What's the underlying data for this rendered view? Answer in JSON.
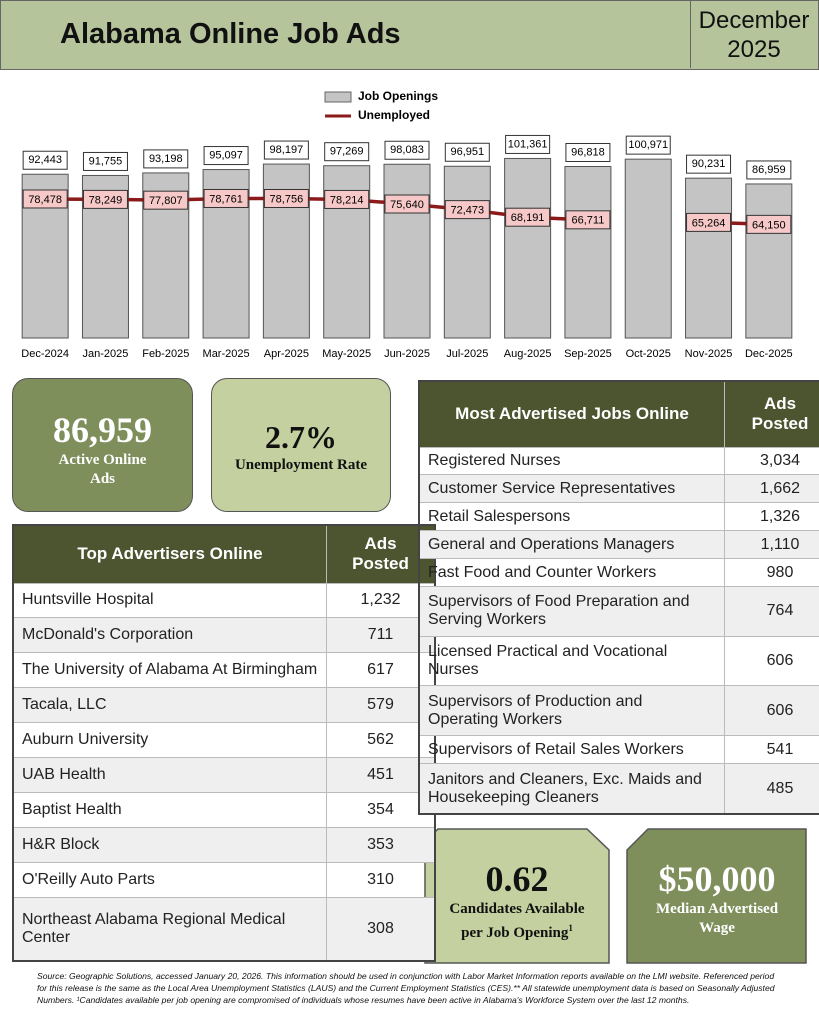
{
  "header": {
    "title": "Alabama Online Job Ads",
    "date_line1": "December",
    "date_line2": "2025"
  },
  "chart_data": {
    "type": "bar",
    "categories": [
      "Dec-2024",
      "Jan-2025",
      "Feb-2025",
      "Mar-2025",
      "Apr-2025",
      "May-2025",
      "Jun-2025",
      "Jul-2025",
      "Aug-2025",
      "Sep-2025",
      "Oct-2025",
      "Nov-2025",
      "Dec-2025"
    ],
    "series": [
      {
        "name": "Job Openings",
        "type": "bar",
        "color": "#c4c4c4",
        "values": [
          92443,
          91755,
          93198,
          95097,
          98197,
          97269,
          98083,
          96951,
          101361,
          96818,
          100971,
          90231,
          86959
        ],
        "value_labels": [
          "92,443",
          "91,755",
          "93,198",
          "95,097",
          "98,197",
          "97,269",
          "98,083",
          "96,951",
          "101,361",
          "96,818",
          "100,971",
          "90,231",
          "86,959"
        ]
      },
      {
        "name": "Unemployed",
        "type": "line",
        "color": "#8b1a1a",
        "values": [
          78478,
          78249,
          77807,
          78761,
          78756,
          78214,
          75640,
          72473,
          68191,
          66711,
          null,
          65264,
          64150
        ],
        "value_labels": [
          "78,478",
          "78,249",
          "77,807",
          "78,761",
          "78,756",
          "78,214",
          "75,640",
          "72,473",
          "68,191",
          "66,711",
          null,
          "65,264",
          "64,150"
        ]
      }
    ],
    "ylim": [
      0,
      140000
    ]
  },
  "stats": [
    {
      "value": "86,959",
      "label": "Active Online Ads"
    },
    {
      "value": "2.7%",
      "label": "Unemployment Rate"
    },
    {
      "value": "0.62",
      "label": "Candidates Available per Job Opening",
      "sup": "1"
    },
    {
      "value": "$50,000",
      "label": "Median Advertised Wage"
    }
  ],
  "top_advertisers": {
    "columns": [
      "Top Advertisers Online",
      "Ads Posted"
    ],
    "rows": [
      [
        "Huntsville Hospital",
        "1,232"
      ],
      [
        "McDonald's Corporation",
        "711"
      ],
      [
        "The University of Alabama At Birmingham",
        "617"
      ],
      [
        "Tacala, LLC",
        "579"
      ],
      [
        "Auburn University",
        "562"
      ],
      [
        "UAB Health",
        "451"
      ],
      [
        "Baptist Health",
        "354"
      ],
      [
        "H&R Block",
        "353"
      ],
      [
        "O'Reilly Auto Parts",
        "310"
      ],
      [
        "Northeast Alabama Regional Medical Center",
        "308"
      ]
    ]
  },
  "most_advertised": {
    "columns": [
      "Most Advertised Jobs Online",
      "Ads Posted"
    ],
    "rows": [
      [
        "Registered Nurses",
        "3,034"
      ],
      [
        "Customer Service Representatives",
        "1,662"
      ],
      [
        "Retail Salespersons",
        "1,326"
      ],
      [
        "General and Operations Managers",
        "1,110"
      ],
      [
        "Fast Food and Counter Workers",
        "980"
      ],
      [
        "Supervisors of Food Preparation and Serving Workers",
        "764"
      ],
      [
        "Licensed Practical and Vocational Nurses",
        "606"
      ],
      [
        "Supervisors of Production and Operating Workers",
        "606"
      ],
      [
        "Supervisors of Retail Sales Workers",
        "541"
      ],
      [
        "Janitors and Cleaners, Exc. Maids and Housekeeping Cleaners",
        "485"
      ]
    ]
  },
  "source": "Source:  Geographic Solutions, accessed January 20, 2026. This information should be used in conjunction with Labor Market Information reports available on the LMI website. Referenced period for this release is the same as the Local Area Unemployment Statistics (LAUS) and the Current Employment Statistics (CES).** All statewide unemployment data is based on Seasonally Adjusted Numbers.  ¹Candidates available per job opening are compromised of individuals whose resumes have been active in Alabama's Workforce System over the last 12 months."
}
